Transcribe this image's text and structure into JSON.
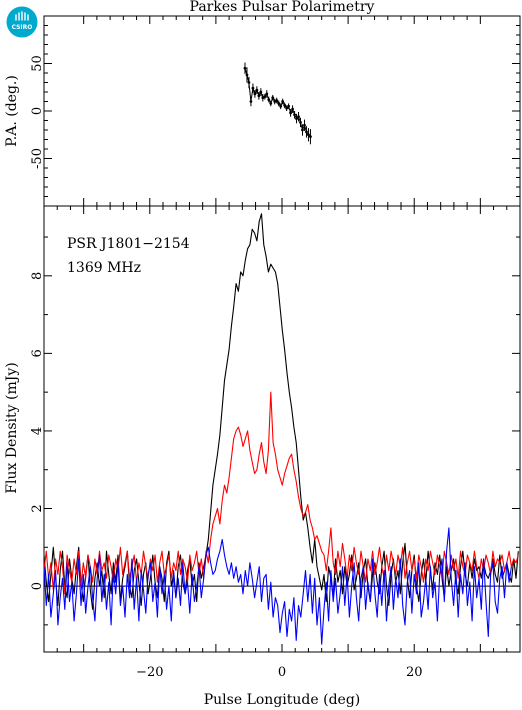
{
  "title": "Parkes Pulsar Polarimetry",
  "logo": {
    "text": "CSIRO",
    "color": "#00a9ce"
  },
  "colors": {
    "total": "#000000",
    "linear": "#ff0000",
    "circular": "#0000ff"
  },
  "annotation": {
    "line1": "PSR J1801−2154",
    "line2": "1369 MHz"
  },
  "chart_data": [
    {
      "id": "pa",
      "type": "scatter",
      "title": "Parkes Pulsar Polarimetry",
      "xlabel": "",
      "ylabel": "P.A. (deg.)",
      "xlim": [
        -36,
        36
      ],
      "ylim": [
        -100,
        100
      ],
      "yticks": [
        -50,
        0,
        50
      ],
      "xticks": [
        -20,
        0,
        20
      ],
      "points": {
        "x": [
          -5.6,
          -5.3,
          -5.0,
          -4.7,
          -4.4,
          -4.1,
          -3.8,
          -3.5,
          -3.2,
          -2.9,
          -2.6,
          -2.3,
          -2.0,
          -1.7,
          -1.4,
          -1.1,
          -0.8,
          -0.5,
          -0.2,
          0.1,
          0.4,
          0.7,
          1.0,
          1.3,
          1.6,
          1.9,
          2.2,
          2.5,
          2.8,
          3.1,
          3.4,
          3.7,
          4.0,
          4.3
        ],
        "y": [
          45,
          38,
          30,
          10,
          24,
          18,
          22,
          16,
          20,
          14,
          15,
          18,
          12,
          8,
          14,
          10,
          11,
          8,
          5,
          10,
          6,
          3,
          5,
          -2,
          2,
          -4,
          -8,
          -6,
          -12,
          -20,
          -15,
          -22,
          -25,
          -27
        ],
        "err": [
          6,
          8,
          6,
          5,
          5,
          4,
          4,
          4,
          4,
          4,
          3,
          4,
          3,
          3,
          3,
          3,
          3,
          3,
          3,
          3,
          3,
          3,
          3,
          4,
          4,
          4,
          5,
          5,
          5,
          6,
          6,
          6,
          7,
          8
        ]
      }
    },
    {
      "id": "profile",
      "type": "line",
      "xlabel": "Pulse Longitude (deg)",
      "ylabel": "Flux Density (mJy)",
      "xlim": [
        -36,
        36
      ],
      "ylim": [
        -1.7,
        9.8
      ],
      "yticks": [
        0,
        2,
        4,
        6,
        8
      ],
      "xticks": [
        -20,
        0,
        20
      ],
      "x_start": -36,
      "x_step": 0.35,
      "series": [
        {
          "color": "#000000",
          "values": [
            0.8,
            0.1,
            -0.4,
            0.3,
            1.0,
            0.2,
            -0.5,
            0.4,
            0.9,
            0.0,
            -0.3,
            0.7,
            0.2,
            -0.2,
            0.5,
            1.0,
            0.1,
            -0.4,
            0.3,
            0.8,
            -0.1,
            -0.6,
            0.2,
            0.6,
            0.0,
            0.4,
            -0.3,
            0.9,
            0.3,
            -0.2,
            0.6,
            0.1,
            0.8,
            -0.4,
            0.2,
            0.5,
            0.9,
            0.0,
            -0.3,
            0.4,
            0.7,
            0.1,
            -0.5,
            0.3,
            0.6,
            -0.2,
            0.2,
            0.8,
            0.1,
            -0.3,
            0.5,
            0.2,
            -0.4,
            0.6,
            0.9,
            0.0,
            0.3,
            -0.3,
            0.5,
            0.8,
            0.1,
            -0.2,
            0.4,
            0.7,
            0.0,
            0.3,
            -0.4,
            0.6,
            0.2,
            0.5,
            0.8,
            1.2,
            1.9,
            2.6,
            3.0,
            3.4,
            3.9,
            4.6,
            5.3,
            5.7,
            6.1,
            6.7,
            7.2,
            7.8,
            7.6,
            8.1,
            8.0,
            8.4,
            8.7,
            8.8,
            9.2,
            9.1,
            8.9,
            9.4,
            9.6,
            8.8,
            8.5,
            8.1,
            8.3,
            8.2,
            8.1,
            7.8,
            7.2,
            6.6,
            6.1,
            5.5,
            5.0,
            4.6,
            4.1,
            3.7,
            3.0,
            2.3,
            1.7,
            1.9,
            1.5,
            1.0,
            0.6,
            1.2,
            0.5,
            0.2,
            -0.1,
            0.3,
            -0.4,
            0.5,
            0.2,
            -0.3,
            0.7,
            0.1,
            0.4,
            -0.2,
            0.5,
            0.0,
            0.3,
            0.8,
            -0.1,
            0.2,
            0.6,
            -0.3,
            0.4,
            0.7,
            0.0,
            -0.4,
            0.3,
            0.6,
            0.1,
            -0.2,
            0.5,
            0.9,
            0.0,
            -0.5,
            0.3,
            0.7,
            0.1,
            0.4,
            -0.2,
            0.6,
            1.1,
            0.2,
            -0.3,
            0.4,
            0.8,
            0.0,
            -0.4,
            0.3,
            0.7,
            0.1,
            0.9,
            0.4,
            -0.1,
            0.6,
            0.3,
            0.8,
            0.2,
            -0.3,
            0.5,
            0.0,
            0.4,
            0.7,
            0.1,
            -0.2,
            0.5,
            0.9,
            0.3,
            0.0,
            0.6,
            0.2,
            0.7,
            0.4,
            0.5,
            0.2,
            0.6,
            0.3,
            0.2,
            0.4,
            0.7,
            0.3,
            0.1,
            0.8,
            0.2,
            0.4,
            0.6,
            0.3,
            0.1,
            0.7,
            0.2,
            0.9,
            0.2
          ]
        },
        {
          "color": "#ff0000",
          "values": [
            0.4,
            0.9,
            0.2,
            0.6,
            -0.1,
            0.7,
            0.3,
            0.9,
            0.5,
            -0.2,
            0.8,
            0.4,
            0.1,
            0.7,
            0.3,
            0.9,
            0.0,
            0.6,
            0.2,
            0.8,
            0.5,
            0.1,
            0.7,
            0.3,
            0.9,
            0.4,
            0.6,
            0.2,
            0.8,
            0.5,
            0.1,
            0.7,
            0.4,
            1.0,
            0.3,
            0.6,
            0.9,
            0.2,
            0.5,
            0.8,
            0.1,
            0.6,
            0.3,
            0.9,
            0.5,
            0.2,
            0.7,
            0.4,
            0.8,
            0.1,
            0.6,
            0.9,
            0.3,
            0.5,
            0.8,
            0.2,
            0.6,
            0.4,
            0.9,
            0.3,
            0.7,
            0.5,
            0.1,
            0.8,
            0.4,
            0.6,
            0.9,
            0.3,
            0.7,
            0.2,
            0.9,
            0.6,
            1.2,
            1.6,
            1.8,
            2.0,
            1.6,
            2.2,
            2.6,
            2.4,
            2.8,
            3.3,
            3.8,
            4.0,
            4.1,
            3.9,
            3.6,
            3.8,
            4.0,
            3.5,
            3.2,
            2.9,
            3.0,
            3.4,
            3.7,
            3.2,
            2.9,
            3.5,
            5.0,
            3.7,
            3.4,
            3.0,
            2.8,
            2.6,
            2.9,
            3.1,
            3.3,
            3.4,
            3.0,
            2.7,
            2.3,
            2.0,
            1.8,
            1.9,
            2.1,
            1.7,
            1.5,
            1.2,
            1.3,
            1.1,
            0.9,
            0.8,
            0.4,
            0.9,
            1.5,
            0.6,
            0.3,
            0.9,
            0.5,
            1.1,
            0.7,
            0.2,
            0.8,
            0.4,
            1.0,
            0.6,
            0.3,
            0.9,
            0.5,
            0.1,
            0.7,
            0.4,
            0.9,
            0.3,
            0.6,
            1.0,
            0.5,
            0.2,
            0.8,
            0.4,
            0.9,
            0.6,
            0.3,
            0.8,
            0.5,
            1.0,
            0.2,
            0.6,
            0.9,
            0.4,
            0.7,
            0.2,
            0.8,
            0.5,
            0.1,
            0.7,
            0.4,
            0.9,
            0.6,
            0.3,
            0.8,
            0.5,
            0.2,
            0.9,
            0.6,
            0.3,
            0.8,
            0.4,
            0.7,
            0.2,
            0.9,
            0.5,
            0.3,
            0.8,
            0.6,
            0.4,
            0.9,
            0.5,
            0.2,
            0.7,
            0.4,
            0.8,
            0.6,
            0.3,
            0.9,
            0.5,
            0.7,
            0.6,
            0.8,
            0.4,
            0.6,
            0.9,
            0.5,
            0.7,
            0.6,
            0.8,
            0.5,
            0.7,
            0.6
          ]
        },
        {
          "color": "#0000ff",
          "values": [
            0.5,
            -0.5,
            0.3,
            -0.8,
            -0.2,
            0.4,
            -1.0,
            -0.3,
            0.2,
            -0.6,
            0.6,
            -0.4,
            0.1,
            -0.9,
            -0.2,
            0.7,
            -0.5,
            0.3,
            -0.7,
            0.0,
            0.5,
            -0.3,
            -0.9,
            0.2,
            0.8,
            -0.4,
            0.3,
            -0.6,
            0.1,
            -1.0,
            0.4,
            -0.2,
            0.6,
            -0.5,
            0.0,
            -0.8,
            0.3,
            -0.3,
            0.7,
            -0.6,
            0.2,
            -0.9,
            0.4,
            -0.1,
            -0.7,
            0.3,
            0.6,
            -0.4,
            0.1,
            -0.8,
            0.5,
            -0.2,
            0.3,
            -0.6,
            0.0,
            -0.9,
            0.4,
            -0.3,
            0.2,
            -0.5,
            0.6,
            -0.2,
            0.1,
            -0.7,
            0.3,
            -0.4,
            0.0,
            0.5,
            -0.3,
            0.2,
            0.8,
            1.0,
            0.6,
            0.3,
            0.4,
            0.7,
            0.9,
            1.2,
            0.8,
            0.5,
            0.3,
            0.6,
            0.2,
            0.5,
            0.1,
            0.3,
            -0.2,
            0.4,
            0.0,
            0.6,
            0.2,
            -0.3,
            0.1,
            0.5,
            -0.4,
            0.2,
            0.3,
            -0.6,
            0.1,
            -0.8,
            -0.3,
            -0.5,
            -1.2,
            -0.7,
            -0.4,
            -1.3,
            -0.6,
            -0.9,
            -0.3,
            -1.4,
            -0.5,
            -0.8,
            -0.2,
            0.4,
            -0.4,
            0.3,
            -0.7,
            0.2,
            -1.0,
            -0.3,
            -1.5,
            -0.6,
            0.1,
            -0.9,
            0.4,
            -0.4,
            0.2,
            -0.7,
            -0.2,
            0.5,
            -0.5,
            0.3,
            -0.8,
            0.0,
            0.6,
            -0.3,
            -0.9,
            0.2,
            0.5,
            -0.6,
            0.1,
            -0.4,
            0.7,
            -0.2,
            -0.8,
            0.3,
            -0.5,
            0.4,
            -0.9,
            0.0,
            0.5,
            -0.6,
            0.2,
            -0.3,
            0.7,
            -0.5,
            -1.0,
            0.1,
            0.4,
            -0.7,
            0.3,
            -0.2,
            0.6,
            -0.8,
            -0.4,
            0.2,
            -0.6,
            0.5,
            -0.3,
            0.1,
            -0.9,
            0.3,
            0.7,
            -0.4,
            0.9,
            1.5,
            0.2,
            -0.5,
            0.4,
            -0.8,
            0.3,
            -0.2,
            0.6,
            -0.5,
            0.1,
            -0.9,
            0.5,
            -0.3,
            0.2,
            -0.6,
            0.7,
            -0.4,
            -1.3,
            0.3,
            0.6,
            -0.4,
            -0.7,
            0.2,
            0.5,
            -0.3,
            0.6,
            0.1,
            0.5
          ]
        }
      ]
    }
  ]
}
